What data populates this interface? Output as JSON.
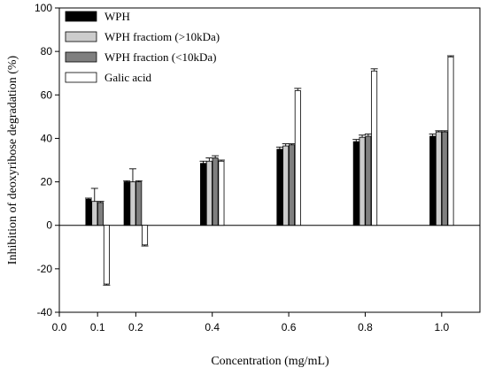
{
  "chart_data": {
    "type": "bar",
    "xlabel": "Concentration (mg/mL)",
    "ylabel": "Inhibition of deoxyribose degradation (%)",
    "xlim": [
      0.0,
      1.1
    ],
    "ylim": [
      -40,
      100
    ],
    "x_tick_labels": [
      "0.0",
      "0.1",
      "0.2",
      "0.4",
      "0.6",
      "0.8",
      "1.0"
    ],
    "y_tick_labels": [
      "-40",
      "-20",
      "0",
      "20",
      "40",
      "60",
      "80",
      "100"
    ],
    "categories": [
      "0.1",
      "0.2",
      "0.4",
      "0.6",
      "0.8",
      "1.0"
    ],
    "legend_position": "top-left",
    "error_bars": "upper for positive bars, lower for negative bars",
    "series": [
      {
        "name": "WPH",
        "color": "#000000",
        "values": [
          12,
          20,
          28.5,
          35,
          38.5,
          41
        ],
        "errors": [
          0.5,
          0.5,
          1,
          1,
          1,
          1
        ]
      },
      {
        "name": "WPH fractiom (>10kDa)",
        "color": "#cccccc",
        "values": [
          11,
          20,
          29.5,
          36.5,
          40.5,
          43
        ],
        "errors": [
          6,
          6,
          1.5,
          1,
          1,
          0.5
        ]
      },
      {
        "name": "WPH fraction (<10kDa)",
        "color": "#7f7f7f",
        "values": [
          10.5,
          20,
          31,
          37,
          41,
          43
        ],
        "errors": [
          0.5,
          0.5,
          1,
          0.5,
          1,
          0.5
        ]
      },
      {
        "name": "Galic acid",
        "color": "#ffffff",
        "values": [
          -27,
          -9,
          29.5,
          62,
          71,
          77.5
        ],
        "errors": [
          0.5,
          0.5,
          0.5,
          1,
          1,
          0.5
        ]
      }
    ]
  }
}
